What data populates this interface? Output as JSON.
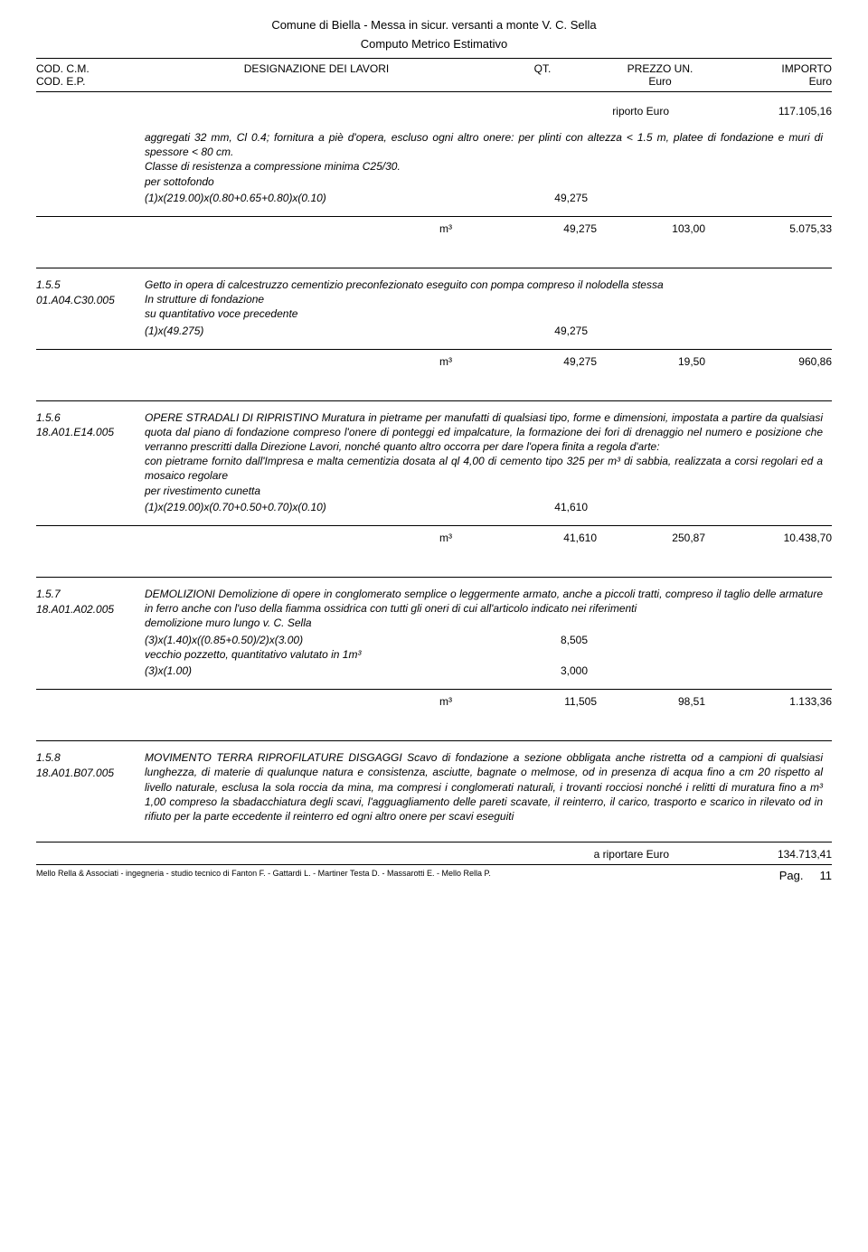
{
  "header": {
    "doc_title": "Comune di Biella - Messa in sicur. versanti a monte V. C. Sella",
    "doc_subtitle": "Computo Metrico Estimativo",
    "col1a": "COD. C.M.",
    "col1b": "COD. E.P.",
    "col2": "DESIGNAZIONE DEI LAVORI",
    "col3": "QT.",
    "col4a": "PREZZO UN.",
    "col4b": "Euro",
    "col5a": "IMPORTO",
    "col5b": "Euro"
  },
  "riporto": {
    "label": "riporto Euro",
    "value": "117.105,16"
  },
  "items": [
    {
      "cm": "",
      "ep": "",
      "desc": "aggregati 32 mm, Cl 0.4; fornitura a piè d'opera, escluso ogni altro onere: per plinti con altezza < 1.5 m, platee di fondazione e muri di spessore < 80 cm.",
      "desc2": "Classe di resistenza a compressione minima C25/30.",
      "sub": "per sottofondo",
      "calc": "(1)x(219.00)x(0.80+0.65+0.80)x(0.10)",
      "calc_val": "49,275",
      "unit": "m³",
      "qty": "49,275",
      "price": "103,00",
      "importo": "5.075,33"
    },
    {
      "cm": "1.5.5",
      "ep": "01.A04.C30.005",
      "desc": "Getto in opera di calcestruzzo cementizio preconfezionato eseguito con pompa compreso il nolodella stessa",
      "desc2": "In strutture di fondazione",
      "sub": "su quantitativo voce precedente",
      "calc": "(1)x(49.275)",
      "calc_val": "49,275",
      "unit": "m³",
      "qty": "49,275",
      "price": "19,50",
      "importo": "960,86"
    },
    {
      "cm": "1.5.6",
      "ep": "18.A01.E14.005",
      "desc": "OPERE STRADALI DI RIPRISTINO Muratura in pietrame per manufatti di qualsiasi tipo, forme e dimensioni, impostata a partire da qualsiasi quota dal piano di fondazione compreso l'onere di ponteggi ed impalcature, la formazione dei fori di drenaggio nel numero e posizione che verranno prescritti dalla Direzione Lavori, nonché quanto altro occorra per dare l'opera finita a regola d'arte:",
      "desc2": "con pietrame fornito dall'Impresa e malta cementizia dosata al ql 4,00 di cemento tipo 325 per m³ di sabbia, realizzata a corsi regolari ed a mosaico regolare",
      "sub": "per rivestimento cunetta",
      "calc": "(1)x(219.00)x(0.70+0.50+0.70)x(0.10)",
      "calc_val": "41,610",
      "unit": "m³",
      "qty": "41,610",
      "price": "250,87",
      "importo": "10.438,70"
    },
    {
      "cm": "1.5.7",
      "ep": "18.A01.A02.005",
      "desc": "DEMOLIZIONI Demolizione di opere in conglomerato semplice o leggermente armato, anche a piccoli tratti, compreso il taglio delle armature in ferro anche con l'uso della fiamma ossidrica con tutti gli oneri di cui all'articolo indicato nei riferimenti",
      "sub": "demolizione muro lungo v. C. Sella",
      "calc": "(3)x(1.40)x((0.85+0.50)/2)x(3.00)",
      "calc_val": "8,505",
      "sub2": "vecchio pozzetto, quantitativo valutato in 1m³",
      "calc2": "(3)x(1.00)",
      "calc2_val": "3,000",
      "unit": "m³",
      "qty": "11,505",
      "price": "98,51",
      "importo": "1.133,36"
    },
    {
      "cm": "1.5.8",
      "ep": "18.A01.B07.005",
      "desc": "MOVIMENTO TERRA RIPROFILATURE DISGAGGI Scavo di fondazione a sezione obbligata anche ristretta od a campioni di qualsiasi lunghezza, di materie di qualunque natura e consistenza, asciutte, bagnate o melmose, od in presenza di acqua fino a cm 20 rispetto al livello naturale, esclusa la sola roccia da mina, ma compresi i conglomerati naturali, i trovanti rocciosi nonché i relitti di muratura fino a m³ 1,00 compreso la sbadacchiatura degli scavi, l'agguagliamento delle pareti scavate, il reinterro, il carico, trasporto e scarico in rilevato od in rifiuto per la parte eccedente il reinterro ed ogni altro onere per scavi eseguiti"
    }
  ],
  "riportare": {
    "label": "a riportare Euro",
    "value": "134.713,41"
  },
  "footer": {
    "credits": "Mello Rella & Associati - ingegneria - studio tecnico di Fanton F. - Gattardi L. - Martiner Testa D. - Massarotti E. - Mello Rella P.",
    "page_label": "Pag.",
    "page_num": "11"
  }
}
